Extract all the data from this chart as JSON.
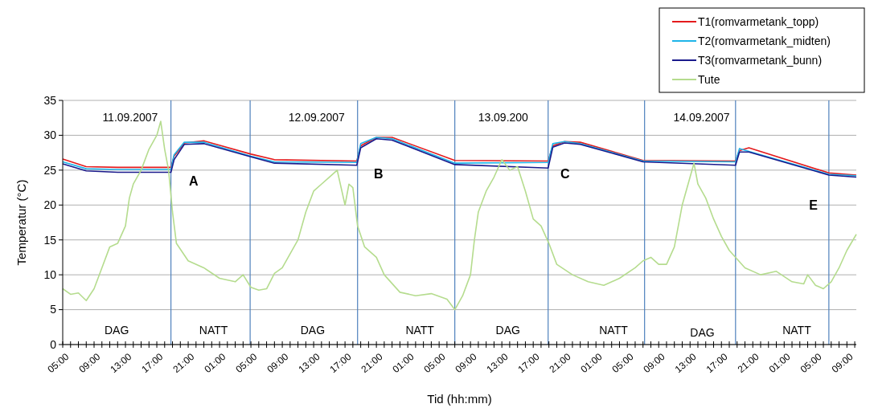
{
  "chart_data": {
    "type": "line",
    "xlabel": "Tid (hh:mm)",
    "ylabel": "Temperatur (°C)",
    "xlim": [
      "2007-09-11T05:00",
      "2007-09-15T10:12"
    ],
    "ylim": [
      0,
      35
    ],
    "yticks": [
      0,
      5,
      10,
      15,
      20,
      25,
      30,
      35
    ],
    "xticks": [
      {
        "value": "2007-09-11T05:00",
        "label": "05:00"
      },
      {
        "value": "2007-09-11T06:00",
        "label": null
      },
      {
        "value": "2007-09-11T07:00",
        "label": null
      },
      {
        "value": "2007-09-11T08:00",
        "label": null
      },
      {
        "value": "2007-09-11T09:00",
        "label": "09:00"
      },
      {
        "value": "2007-09-11T10:00",
        "label": null
      },
      {
        "value": "2007-09-11T11:00",
        "label": null
      },
      {
        "value": "2007-09-11T12:00",
        "label": null
      },
      {
        "value": "2007-09-11T13:00",
        "label": "13:00"
      },
      {
        "value": "2007-09-11T14:00",
        "label": null
      },
      {
        "value": "2007-09-11T15:00",
        "label": null
      },
      {
        "value": "2007-09-11T16:00",
        "label": null
      },
      {
        "value": "2007-09-11T17:00",
        "label": "17:00"
      },
      {
        "value": "2007-09-11T18:00",
        "label": null
      },
      {
        "value": "2007-09-11T19:00",
        "label": null
      },
      {
        "value": "2007-09-11T20:00",
        "label": null
      },
      {
        "value": "2007-09-11T21:00",
        "label": "21:00"
      },
      {
        "value": "2007-09-11T22:00",
        "label": null
      },
      {
        "value": "2007-09-11T23:00",
        "label": null
      },
      {
        "value": "2007-09-12T00:00",
        "label": null
      },
      {
        "value": "2007-09-12T01:00",
        "label": "01:00"
      },
      {
        "value": "2007-09-12T02:00",
        "label": null
      },
      {
        "value": "2007-09-12T03:00",
        "label": null
      },
      {
        "value": "2007-09-12T04:00",
        "label": null
      },
      {
        "value": "2007-09-12T05:00",
        "label": "05:00"
      },
      {
        "value": "2007-09-12T06:00",
        "label": null
      },
      {
        "value": "2007-09-12T07:00",
        "label": null
      },
      {
        "value": "2007-09-12T08:00",
        "label": null
      },
      {
        "value": "2007-09-12T09:00",
        "label": "09:00"
      },
      {
        "value": "2007-09-12T10:00",
        "label": null
      },
      {
        "value": "2007-09-12T11:00",
        "label": null
      },
      {
        "value": "2007-09-12T12:00",
        "label": null
      },
      {
        "value": "2007-09-12T13:00",
        "label": "13:00"
      },
      {
        "value": "2007-09-12T14:00",
        "label": null
      },
      {
        "value": "2007-09-12T15:00",
        "label": null
      },
      {
        "value": "2007-09-12T16:00",
        "label": null
      },
      {
        "value": "2007-09-12T17:00",
        "label": "17:00"
      },
      {
        "value": "2007-09-12T18:00",
        "label": null
      },
      {
        "value": "2007-09-12T19:00",
        "label": null
      },
      {
        "value": "2007-09-12T20:00",
        "label": null
      },
      {
        "value": "2007-09-12T21:00",
        "label": "21:00"
      },
      {
        "value": "2007-09-12T22:00",
        "label": null
      },
      {
        "value": "2007-09-12T23:00",
        "label": null
      },
      {
        "value": "2007-09-13T00:00",
        "label": null
      },
      {
        "value": "2007-09-13T01:00",
        "label": "01:00"
      },
      {
        "value": "2007-09-13T02:00",
        "label": null
      },
      {
        "value": "2007-09-13T03:00",
        "label": null
      },
      {
        "value": "2007-09-13T04:00",
        "label": null
      },
      {
        "value": "2007-09-13T05:00",
        "label": "05:00"
      },
      {
        "value": "2007-09-13T06:00",
        "label": null
      },
      {
        "value": "2007-09-13T07:00",
        "label": null
      },
      {
        "value": "2007-09-13T08:00",
        "label": null
      },
      {
        "value": "2007-09-13T09:00",
        "label": "09:00"
      },
      {
        "value": "2007-09-13T10:00",
        "label": null
      },
      {
        "value": "2007-09-13T11:00",
        "label": null
      },
      {
        "value": "2007-09-13T12:00",
        "label": null
      },
      {
        "value": "2007-09-13T13:00",
        "label": "13:00"
      },
      {
        "value": "2007-09-13T14:00",
        "label": null
      },
      {
        "value": "2007-09-13T15:00",
        "label": null
      },
      {
        "value": "2007-09-13T16:00",
        "label": null
      },
      {
        "value": "2007-09-13T17:00",
        "label": "17:00"
      },
      {
        "value": "2007-09-13T18:00",
        "label": null
      },
      {
        "value": "2007-09-13T19:00",
        "label": null
      },
      {
        "value": "2007-09-13T20:00",
        "label": null
      },
      {
        "value": "2007-09-13T21:00",
        "label": "21:00"
      },
      {
        "value": "2007-09-13T22:00",
        "label": null
      },
      {
        "value": "2007-09-13T23:00",
        "label": null
      },
      {
        "value": "2007-09-14T00:00",
        "label": null
      },
      {
        "value": "2007-09-14T01:00",
        "label": "01:00"
      },
      {
        "value": "2007-09-14T02:00",
        "label": null
      },
      {
        "value": "2007-09-14T03:00",
        "label": null
      },
      {
        "value": "2007-09-14T04:00",
        "label": null
      },
      {
        "value": "2007-09-14T05:00",
        "label": "05:00"
      },
      {
        "value": "2007-09-14T06:00",
        "label": null
      },
      {
        "value": "2007-09-14T07:00",
        "label": null
      },
      {
        "value": "2007-09-14T08:00",
        "label": null
      },
      {
        "value": "2007-09-14T09:00",
        "label": "09:00"
      },
      {
        "value": "2007-09-14T10:00",
        "label": null
      },
      {
        "value": "2007-09-14T11:00",
        "label": null
      },
      {
        "value": "2007-09-14T12:00",
        "label": null
      },
      {
        "value": "2007-09-14T13:00",
        "label": "13:00"
      },
      {
        "value": "2007-09-14T14:00",
        "label": null
      },
      {
        "value": "2007-09-14T15:00",
        "label": null
      },
      {
        "value": "2007-09-14T16:00",
        "label": null
      },
      {
        "value": "2007-09-14T17:00",
        "label": "17:00"
      },
      {
        "value": "2007-09-14T18:00",
        "label": null
      },
      {
        "value": "2007-09-14T19:00",
        "label": null
      },
      {
        "value": "2007-09-14T20:00",
        "label": null
      },
      {
        "value": "2007-09-14T21:00",
        "label": "21:00"
      },
      {
        "value": "2007-09-14T22:00",
        "label": null
      },
      {
        "value": "2007-09-14T23:00",
        "label": null
      },
      {
        "value": "2007-09-15T00:00",
        "label": null
      },
      {
        "value": "2007-09-15T01:00",
        "label": "01:00"
      },
      {
        "value": "2007-09-15T02:00",
        "label": null
      },
      {
        "value": "2007-09-15T03:00",
        "label": null
      },
      {
        "value": "2007-09-15T04:00",
        "label": null
      },
      {
        "value": "2007-09-15T05:00",
        "label": "05:00"
      },
      {
        "value": "2007-09-15T06:00",
        "label": null
      },
      {
        "value": "2007-09-15T07:00",
        "label": null
      },
      {
        "value": "2007-09-15T08:00",
        "label": null
      },
      {
        "value": "2007-09-15T09:00",
        "label": "09:00"
      },
      {
        "value": "2007-09-15T10:00",
        "label": null
      }
    ],
    "grid": "y",
    "legend": "top right",
    "marker": "none",
    "line_style": "solid",
    "series": [
      {
        "name": "T1(romvarmetank_topp)",
        "color": "#e41a1c",
        "x": [
          "2007-09-11T05:00",
          "2007-09-11T08:00",
          "2007-09-11T12:00",
          "2007-09-11T18:48",
          "2007-09-11T19:12",
          "2007-09-11T20:30",
          "2007-09-11T23:00",
          "2007-09-12T05:00",
          "2007-09-12T08:00",
          "2007-09-12T18:30",
          "2007-09-12T19:00",
          "2007-09-12T21:00",
          "2007-09-12T23:00",
          "2007-09-13T07:00",
          "2007-09-13T18:54",
          "2007-09-13T19:30",
          "2007-09-13T21:00",
          "2007-09-13T23:00",
          "2007-09-14T07:00",
          "2007-09-14T18:48",
          "2007-09-14T19:18",
          "2007-09-14T20:30",
          "2007-09-15T06:42",
          "2007-09-15T10:12"
        ],
        "values": [
          26.6,
          25.5,
          25.4,
          25.4,
          27,
          28.9,
          29.2,
          27.3,
          26.5,
          26.3,
          28.5,
          29.7,
          29.7,
          26.4,
          26.3,
          28.5,
          29.1,
          29,
          26.4,
          26.3,
          27.8,
          28.2,
          24.6,
          24.3
        ]
      },
      {
        "name": "T2(romvarmetank_midten)",
        "color": "#1fb4e8",
        "x": [
          "2007-09-11T05:00",
          "2007-09-11T08:00",
          "2007-09-11T12:00",
          "2007-09-11T18:48",
          "2007-09-11T19:12",
          "2007-09-11T20:30",
          "2007-09-11T23:00",
          "2007-09-12T05:00",
          "2007-09-12T08:00",
          "2007-09-12T18:30",
          "2007-09-12T19:00",
          "2007-09-12T21:00",
          "2007-09-12T23:00",
          "2007-09-13T07:00",
          "2007-09-13T18:54",
          "2007-09-13T19:30",
          "2007-09-13T21:00",
          "2007-09-13T23:00",
          "2007-09-14T07:00",
          "2007-09-14T18:48",
          "2007-09-14T19:18",
          "2007-09-14T20:30",
          "2007-09-15T06:42",
          "2007-09-15T10:12"
        ],
        "values": [
          26.2,
          25.2,
          25.1,
          25.1,
          27.2,
          29,
          29,
          27,
          26.2,
          26.1,
          28.8,
          29.7,
          29.5,
          26,
          26.1,
          28.8,
          29.1,
          28.8,
          26.3,
          26.2,
          28.1,
          27.7,
          24.4,
          24.2
        ]
      },
      {
        "name": "T3(romvarmetank_bunn)",
        "color": "#1a1a8c",
        "x": [
          "2007-09-11T05:00",
          "2007-09-11T08:00",
          "2007-09-11T12:00",
          "2007-09-11T18:48",
          "2007-09-11T19:12",
          "2007-09-11T20:30",
          "2007-09-11T23:00",
          "2007-09-12T05:00",
          "2007-09-12T08:00",
          "2007-09-12T18:30",
          "2007-09-12T19:00",
          "2007-09-12T21:00",
          "2007-09-12T23:00",
          "2007-09-13T07:00",
          "2007-09-13T18:54",
          "2007-09-13T19:30",
          "2007-09-13T21:00",
          "2007-09-13T23:00",
          "2007-09-14T07:00",
          "2007-09-14T18:48",
          "2007-09-14T19:18",
          "2007-09-14T20:30",
          "2007-09-15T06:42",
          "2007-09-15T10:12"
        ],
        "values": [
          25.9,
          24.9,
          24.7,
          24.7,
          26.5,
          28.7,
          28.8,
          26.9,
          26,
          25.7,
          28.2,
          29.5,
          29.3,
          25.8,
          25.3,
          28.3,
          28.9,
          28.7,
          26.2,
          25.7,
          27.6,
          27.6,
          24.3,
          24
        ]
      },
      {
        "name": "Tute",
        "color": "#b5dc8e",
        "x": [
          "2007-09-11T05:00",
          "2007-09-11T06:00",
          "2007-09-11T07:00",
          "2007-09-11T08:00",
          "2007-09-11T09:00",
          "2007-09-11T10:00",
          "2007-09-11T11:00",
          "2007-09-11T12:00",
          "2007-09-11T13:00",
          "2007-09-11T13:30",
          "2007-09-11T14:00",
          "2007-09-11T15:00",
          "2007-09-11T16:00",
          "2007-09-11T17:00",
          "2007-09-11T17:30",
          "2007-09-11T18:00",
          "2007-09-11T18:30",
          "2007-09-11T19:00",
          "2007-09-11T19:30",
          "2007-09-11T21:00",
          "2007-09-11T23:00",
          "2007-09-12T01:00",
          "2007-09-12T03:00",
          "2007-09-12T04:00",
          "2007-09-12T05:00",
          "2007-09-12T06:00",
          "2007-09-12T07:00",
          "2007-09-12T08:00",
          "2007-09-12T09:00",
          "2007-09-12T11:00",
          "2007-09-12T12:00",
          "2007-09-12T13:00",
          "2007-09-12T14:00",
          "2007-09-12T15:00",
          "2007-09-12T16:00",
          "2007-09-12T17:00",
          "2007-09-12T17:30",
          "2007-09-12T18:00",
          "2007-09-12T18:36",
          "2007-09-12T19:30",
          "2007-09-12T21:00",
          "2007-09-12T22:00",
          "2007-09-13T00:00",
          "2007-09-13T02:00",
          "2007-09-13T04:00",
          "2007-09-13T06:00",
          "2007-09-13T07:00",
          "2007-09-13T08:00",
          "2007-09-13T09:00",
          "2007-09-13T09:30",
          "2007-09-13T10:00",
          "2007-09-13T11:00",
          "2007-09-13T12:00",
          "2007-09-13T13:00",
          "2007-09-13T14:00",
          "2007-09-13T15:00",
          "2007-09-13T16:00",
          "2007-09-13T17:00",
          "2007-09-13T18:00",
          "2007-09-13T19:00",
          "2007-09-13T20:00",
          "2007-09-13T22:00",
          "2007-09-14T00:00",
          "2007-09-14T02:00",
          "2007-09-14T04:00",
          "2007-09-14T06:00",
          "2007-09-14T07:00",
          "2007-09-14T08:00",
          "2007-09-14T09:00",
          "2007-09-14T10:00",
          "2007-09-14T11:00",
          "2007-09-14T12:00",
          "2007-09-14T13:00",
          "2007-09-14T13:30",
          "2007-09-14T14:00",
          "2007-09-14T15:00",
          "2007-09-14T16:00",
          "2007-09-14T17:00",
          "2007-09-14T18:00",
          "2007-09-14T20:00",
          "2007-09-14T22:00",
          "2007-09-15T00:00",
          "2007-09-15T02:00",
          "2007-09-15T03:30",
          "2007-09-15T04:00",
          "2007-09-15T05:00",
          "2007-09-15T06:00",
          "2007-09-15T07:00",
          "2007-09-15T08:00",
          "2007-09-15T09:00",
          "2007-09-15T10:12"
        ],
        "values": [
          8,
          7.2,
          7.4,
          6.3,
          8,
          11,
          14,
          14.5,
          17,
          21,
          23,
          25,
          28,
          30,
          32,
          28,
          25,
          19,
          14.5,
          12,
          11,
          9.5,
          9,
          10,
          8.2,
          7.8,
          8,
          10.2,
          11,
          15,
          19,
          22,
          23,
          24,
          25,
          20,
          23,
          22.5,
          17,
          14,
          12.5,
          10,
          7.5,
          7,
          7.3,
          6.5,
          5,
          7,
          10,
          15,
          19,
          22,
          24,
          26.5,
          25,
          25.5,
          22,
          18,
          17,
          14.5,
          11.5,
          10,
          9,
          8.5,
          9.5,
          11,
          12,
          12.5,
          11.5,
          11.5,
          14,
          20,
          24,
          26,
          23,
          21,
          18,
          15.5,
          13.5,
          11,
          10,
          10.5,
          9,
          8.7,
          10,
          8.5,
          8,
          9,
          11,
          13.5,
          15.8
        ]
      }
    ],
    "ref_lines": [
      {
        "axis": "x",
        "value": "2007-09-11T18:48",
        "color": "#4f81bd"
      },
      {
        "axis": "x",
        "value": "2007-09-12T04:54",
        "color": "#4f81bd"
      },
      {
        "axis": "x",
        "value": "2007-09-12T18:36",
        "color": "#4f81bd"
      },
      {
        "axis": "x",
        "value": "2007-09-13T07:00",
        "color": "#4f81bd"
      },
      {
        "axis": "x",
        "value": "2007-09-13T18:54",
        "color": "#4f81bd"
      },
      {
        "axis": "x",
        "value": "2007-09-14T07:12",
        "color": "#4f81bd"
      },
      {
        "axis": "x",
        "value": "2007-09-14T18:48",
        "color": "#4f81bd"
      },
      {
        "axis": "x",
        "value": "2007-09-15T06:42",
        "color": "#4f81bd"
      }
    ],
    "annotations": [
      "11.09.2007",
      "12.09.2007",
      "13.09.200",
      "14.09.2007",
      "A",
      "B",
      "C",
      "E",
      "DAG",
      "NATT",
      "DAG",
      "NATT",
      "DAG",
      "NATT",
      "DAG",
      "NATT"
    ]
  }
}
